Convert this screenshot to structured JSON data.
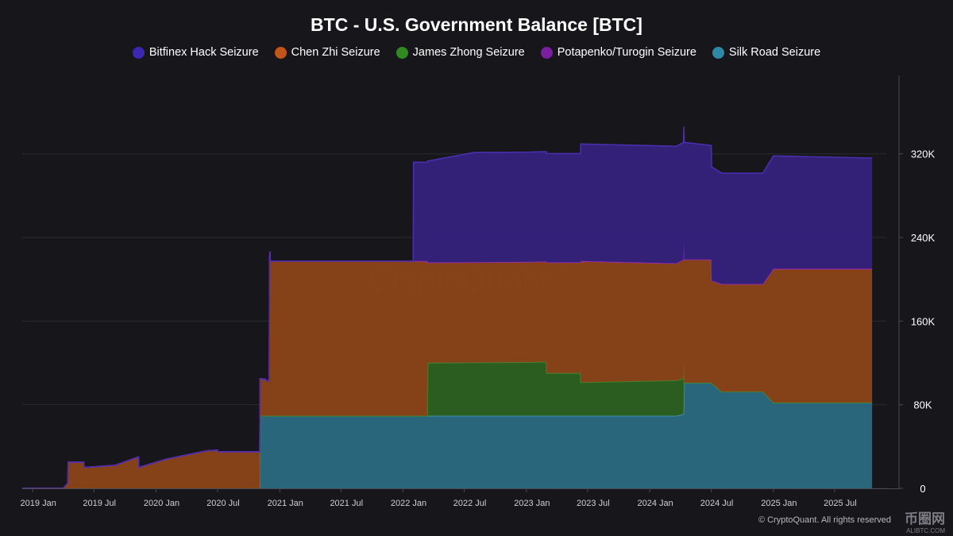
{
  "title": "BTC - U.S. Government Balance [BTC]",
  "watermark": "CryptoQuant",
  "credit": "© CryptoQuant. All rights reserved",
  "site_logo": {
    "main": "币圈网",
    "sub": "ALIBTC.COM"
  },
  "chart_data": {
    "type": "area",
    "stacked": true,
    "title": "BTC - U.S. Government Balance [BTC]",
    "legend_position": "top-center",
    "grid": true,
    "y_ticks": [
      {
        "value": 0,
        "label": "0"
      },
      {
        "value": 80000,
        "label": "80K"
      },
      {
        "value": 160000,
        "label": "160K"
      },
      {
        "value": 240000,
        "label": "240K"
      },
      {
        "value": 320000,
        "label": "320K"
      }
    ],
    "ylim": [
      0,
      395000
    ],
    "xlim": [
      "2018-12-01",
      "2025-12-01"
    ],
    "x_ticks": [
      {
        "value": "2019-01-01",
        "label": "2019 Jan"
      },
      {
        "value": "2019-07-01",
        "label": "2019 Jul"
      },
      {
        "value": "2020-01-01",
        "label": "2020 Jan"
      },
      {
        "value": "2020-07-01",
        "label": "2020 Jul"
      },
      {
        "value": "2021-01-01",
        "label": "2021 Jan"
      },
      {
        "value": "2021-07-01",
        "label": "2021 Jul"
      },
      {
        "value": "2022-01-01",
        "label": "2022 Jan"
      },
      {
        "value": "2022-07-01",
        "label": "2022 Jul"
      },
      {
        "value": "2023-01-01",
        "label": "2023 Jan"
      },
      {
        "value": "2023-07-01",
        "label": "2023 Jul"
      },
      {
        "value": "2024-01-01",
        "label": "2024 Jan"
      },
      {
        "value": "2024-07-01",
        "label": "2024 Jul"
      },
      {
        "value": "2025-01-01",
        "label": "2025 Jan"
      },
      {
        "value": "2025-07-01",
        "label": "2025 Jul"
      }
    ],
    "series": [
      {
        "name": "Silk Road Seizure",
        "color": "#2a6a82",
        "points": [
          [
            "2018-12-01",
            0
          ],
          [
            "2020-11-03",
            0
          ],
          [
            "2020-11-04",
            69400
          ],
          [
            "2024-03-20",
            69400
          ],
          [
            "2024-04-10",
            71000
          ],
          [
            "2024-04-12",
            101000
          ],
          [
            "2024-07-01",
            101000
          ],
          [
            "2024-08-01",
            92500
          ],
          [
            "2024-12-01",
            92500
          ],
          [
            "2025-01-01",
            82000
          ],
          [
            "2025-10-20",
            82000
          ]
        ]
      },
      {
        "name": "James Zhong Seizure",
        "color": "#2c6121",
        "points": [
          [
            "2018-12-01",
            0
          ],
          [
            "2022-03-14",
            0
          ],
          [
            "2022-03-15",
            50700
          ],
          [
            "2023-01-01",
            51200
          ],
          [
            "2023-01-01",
            51700
          ],
          [
            "2023-03-01",
            51700
          ],
          [
            "2023-03-02",
            40800
          ],
          [
            "2023-06-10",
            40800
          ],
          [
            "2023-06-11",
            32000
          ],
          [
            "2024-04-11",
            34000
          ],
          [
            "2024-04-12",
            0
          ],
          [
            "2025-10-20",
            0
          ]
        ]
      },
      {
        "name": "Chen Zhi Seizure",
        "color": "#8b4317",
        "points": [
          [
            "2018-12-01",
            0
          ],
          [
            "2019-04-01",
            0
          ],
          [
            "2019-04-15",
            5000
          ],
          [
            "2019-04-16",
            25000
          ],
          [
            "2019-06-01",
            25000
          ],
          [
            "2019-06-02",
            20000
          ],
          [
            "2019-09-01",
            22000
          ],
          [
            "2019-11-10",
            30000
          ],
          [
            "2019-11-11",
            20000
          ],
          [
            "2020-02-01",
            28000
          ],
          [
            "2020-06-01",
            36000
          ],
          [
            "2020-07-01",
            36500
          ],
          [
            "2020-07-02",
            35000
          ],
          [
            "2020-11-03",
            35000
          ],
          [
            "2020-11-04",
            35500
          ],
          [
            "2020-11-20",
            35000
          ],
          [
            "2020-11-21",
            33500
          ],
          [
            "2020-12-01",
            33500
          ],
          [
            "2020-12-02",
            150000
          ],
          [
            "2020-12-03",
            157000
          ],
          [
            "2020-12-04",
            148000
          ],
          [
            "2022-03-14",
            148000
          ],
          [
            "2022-03-15",
            96000
          ],
          [
            "2023-01-01",
            96000
          ],
          [
            "2023-03-01",
            96000
          ],
          [
            "2023-03-02",
            106000
          ],
          [
            "2023-06-10",
            106000
          ],
          [
            "2023-06-11",
            116000
          ],
          [
            "2024-03-20",
            112000
          ],
          [
            "2024-04-11",
            114000
          ],
          [
            "2024-04-12",
            118000
          ],
          [
            "2024-07-01",
            118000
          ],
          [
            "2024-07-02",
            98000
          ],
          [
            "2024-08-01",
            103000
          ],
          [
            "2024-12-01",
            103000
          ],
          [
            "2025-01-01",
            128000
          ],
          [
            "2025-10-20",
            128000
          ]
        ]
      },
      {
        "name": "Potapenko/Turogin Seizure",
        "color": "#6b1d86",
        "points": [
          [
            "2018-12-01",
            0
          ],
          [
            "2025-10-20",
            0
          ]
        ]
      },
      {
        "name": "Bitfinex Hack Seizure",
        "color": "#35217c",
        "points": [
          [
            "2018-12-01",
            0
          ],
          [
            "2022-01-31",
            0
          ],
          [
            "2022-02-01",
            94600
          ],
          [
            "2022-03-14",
            94600
          ],
          [
            "2022-03-15",
            97000
          ],
          [
            "2022-08-01",
            105000
          ],
          [
            "2023-01-01",
            105000
          ],
          [
            "2023-03-01",
            105000
          ],
          [
            "2023-03-02",
            104000
          ],
          [
            "2023-06-10",
            104000
          ],
          [
            "2023-06-11",
            112000
          ],
          [
            "2024-04-11",
            112000
          ],
          [
            "2024-04-12",
            112000
          ],
          [
            "2024-07-01",
            109000
          ],
          [
            "2024-08-01",
            106000
          ],
          [
            "2024-12-01",
            106000
          ],
          [
            "2025-01-01",
            108000
          ],
          [
            "2025-10-20",
            106000
          ]
        ]
      }
    ]
  }
}
